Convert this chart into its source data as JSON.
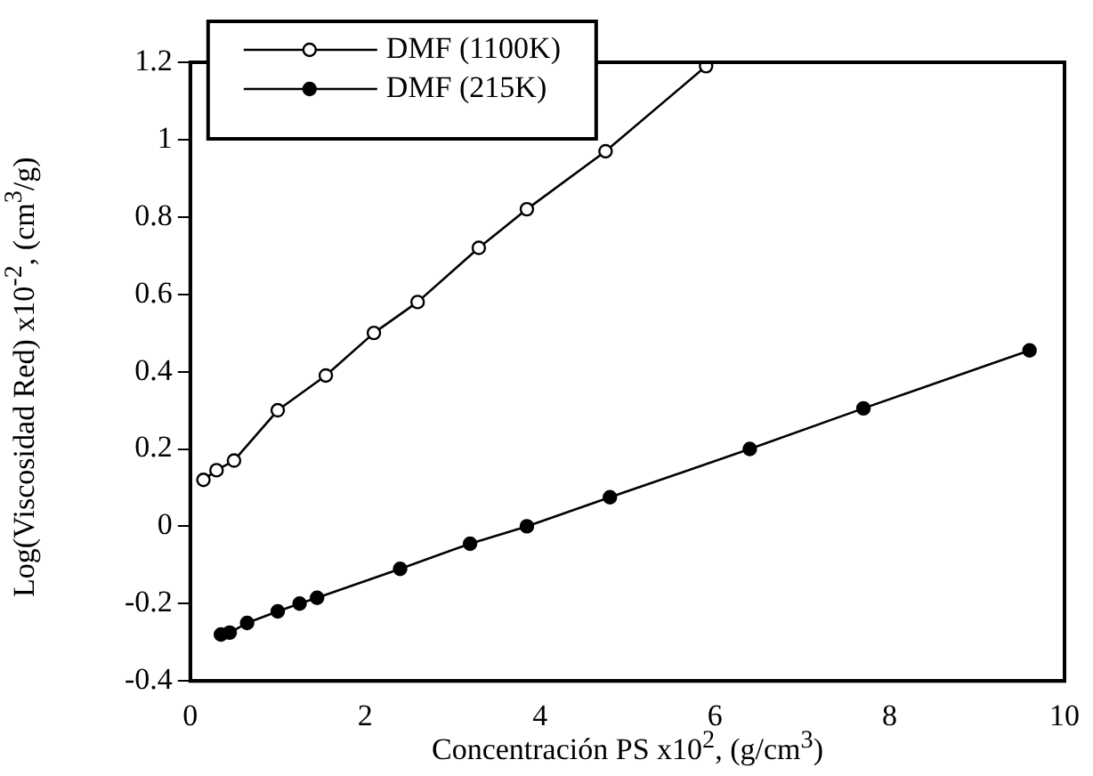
{
  "chart_data": {
    "type": "line",
    "xlabel": "Concentración PS x10$^{2}$,  (g/cm$^{3}$)",
    "ylabel": "Log(Viscosidad Red) x10$^{-2}$,  (cm$^{3}$/g)",
    "xlim": [
      0,
      10
    ],
    "xticks": [
      0,
      2,
      4,
      6,
      8,
      10
    ],
    "ylim": [
      -0.4,
      1.2
    ],
    "yticks": [
      -0.4,
      -0.2,
      0,
      0.2,
      0.4,
      0.6,
      0.8,
      1,
      1.2
    ],
    "grid": false,
    "legend": "top left",
    "series": [
      {
        "name": "DMF (1100K)",
        "color": "#000000",
        "marker": "circle",
        "x": [
          0.15,
          0.3,
          0.5,
          1.0,
          1.55,
          2.1,
          2.6,
          3.3,
          3.85,
          4.75,
          5.9
        ],
        "values": [
          0.12,
          0.145,
          0.17,
          0.3,
          0.39,
          0.5,
          0.58,
          0.72,
          0.82,
          0.97,
          1.19
        ]
      },
      {
        "name": "DMF (215K)",
        "color": "#000000",
        "marker": "circle",
        "x": [
          0.35,
          0.45,
          0.65,
          1.0,
          1.25,
          1.45,
          2.4,
          3.2,
          3.85,
          4.8,
          6.4,
          7.7,
          9.6
        ],
        "values": [
          -0.28,
          -0.275,
          -0.25,
          -0.22,
          -0.2,
          -0.185,
          -0.11,
          -0.045,
          0.0,
          0.075,
          0.2,
          0.305,
          0.455
        ]
      }
    ]
  }
}
